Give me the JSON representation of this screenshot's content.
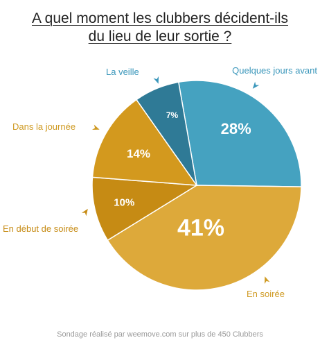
{
  "chart_data": {
    "type": "pie",
    "title": "A quel moment les clubbers décident-ils du lieu de leur sortie ?",
    "title_lines": [
      "A quel moment les clubbers décident-ils",
      "du lieu de leur sortie ?"
    ],
    "slices": [
      {
        "label": "Quelques jours avant",
        "value": 28,
        "display": "28%",
        "color": "#45a2c0",
        "label_color": "#3b97bb"
      },
      {
        "label": "En soirée",
        "value": 41,
        "display": "41%",
        "color": "#dda93a",
        "label_color": "#cf9a22"
      },
      {
        "label": "En début de soirée",
        "value": 10,
        "display": "10%",
        "color": "#c68b14",
        "label_color": "#c68b14"
      },
      {
        "label": "Dans la journée",
        "value": 14,
        "display": "14%",
        "color": "#d3991e",
        "label_color": "#cf9a22"
      },
      {
        "label": "La veille",
        "value": 7,
        "display": "7%",
        "color": "#2f7a96",
        "label_color": "#3b97bb"
      }
    ],
    "legend": "none"
  },
  "footer": {
    "note": "Sondage réalisé par weemove.com sur plus de 450 Clubbers"
  }
}
